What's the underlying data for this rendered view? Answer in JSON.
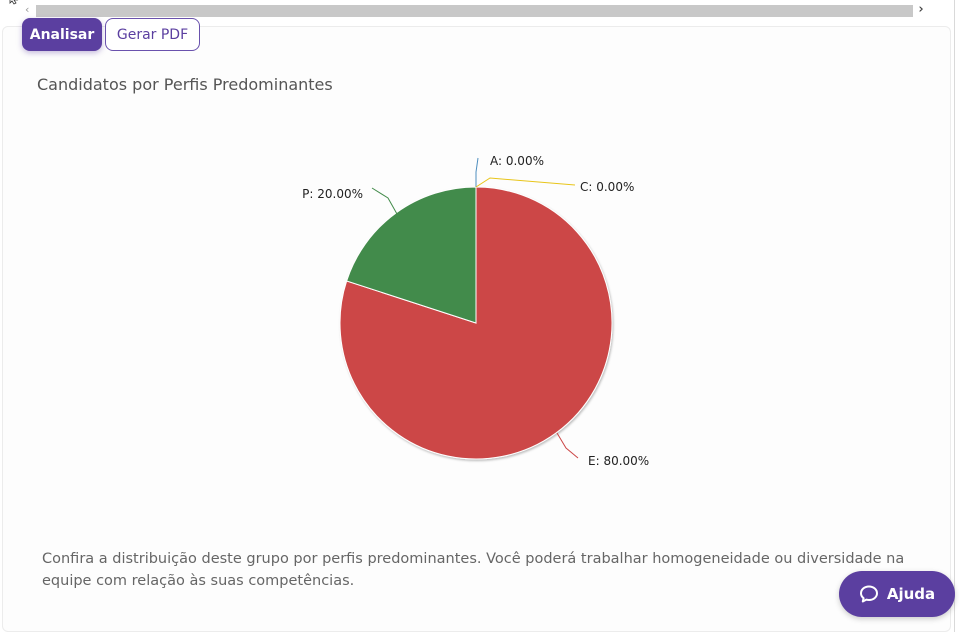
{
  "toolbar": {
    "analyze_label": "Analisar",
    "pdf_label": "Gerar PDF"
  },
  "chart_card": {
    "title": "Candidatos por Perfis Predominantes",
    "description": "Confira a distribuição deste grupo por perfis predominantes. Você poderá trabalhar homogeneidade ou diversidade na equipe com relação às suas competências."
  },
  "chart_data": {
    "type": "pie",
    "title": "Candidatos por Perfis Predominantes",
    "slices": [
      {
        "label": "A",
        "value": 0.0,
        "text": "A: 0.00%",
        "color": "#4f8fbf"
      },
      {
        "label": "C",
        "value": 0.0,
        "text": "C: 0.00%",
        "color": "#e8c51a"
      },
      {
        "label": "E",
        "value": 80.0,
        "text": "E: 80.00%",
        "color": "#cc4747"
      },
      {
        "label": "P",
        "value": 20.0,
        "text": "P: 20.00%",
        "color": "#438b4b"
      }
    ]
  },
  "help": {
    "label": "Ajuda"
  },
  "icons": {
    "help": "chat-bubble-icon",
    "scroll_left": "chevron-left-icon",
    "scroll_right": "chevron-right-icon"
  },
  "colors": {
    "brand": "#5b3fa0"
  }
}
